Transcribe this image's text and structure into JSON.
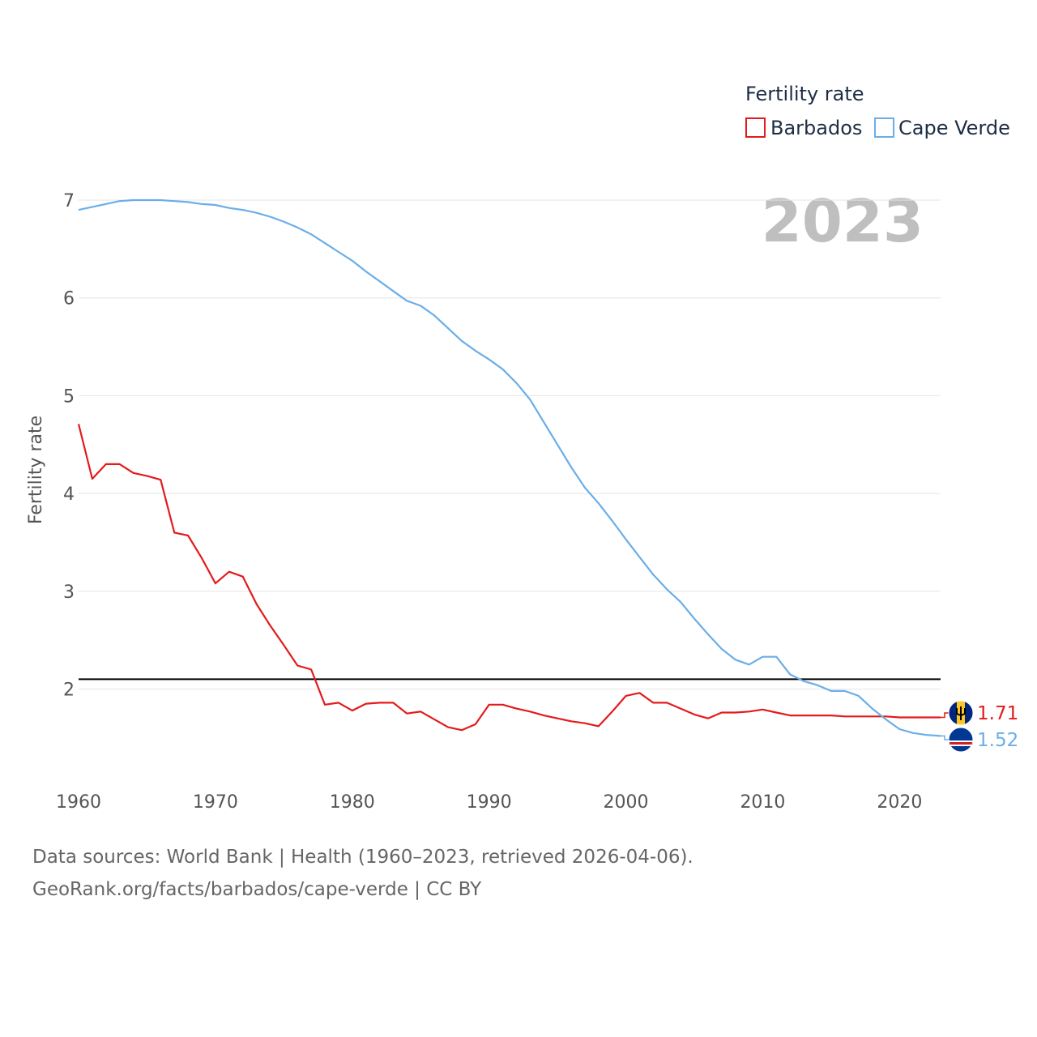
{
  "chart_data": {
    "type": "line",
    "legend_title": "Fertility rate",
    "ylabel": "Fertility rate",
    "xlabel": "",
    "year_label": "2023",
    "xlim": [
      1960,
      2023
    ],
    "ylim": [
      1.0,
      7.0
    ],
    "y_ticks": [
      2,
      3,
      4,
      5,
      6,
      7
    ],
    "x_ticks": [
      1960,
      1970,
      1980,
      1990,
      2000,
      2010,
      2020
    ],
    "reference_line": 2.1,
    "x": [
      1960,
      1961,
      1962,
      1963,
      1964,
      1965,
      1966,
      1967,
      1968,
      1969,
      1970,
      1971,
      1972,
      1973,
      1974,
      1975,
      1976,
      1977,
      1978,
      1979,
      1980,
      1981,
      1982,
      1983,
      1984,
      1985,
      1986,
      1987,
      1988,
      1989,
      1990,
      1991,
      1992,
      1993,
      1994,
      1995,
      1996,
      1997,
      1998,
      1999,
      2000,
      2001,
      2002,
      2003,
      2004,
      2005,
      2006,
      2007,
      2008,
      2009,
      2010,
      2011,
      2012,
      2013,
      2014,
      2015,
      2016,
      2017,
      2018,
      2019,
      2020,
      2021,
      2022,
      2023
    ],
    "series": [
      {
        "name": "Barbados",
        "color": "#e41a1c",
        "end_label": "1.71",
        "values": [
          4.71,
          4.15,
          4.3,
          4.3,
          4.21,
          4.18,
          4.14,
          3.6,
          3.57,
          3.34,
          3.08,
          3.2,
          3.15,
          2.87,
          2.65,
          2.45,
          2.24,
          2.2,
          1.84,
          1.86,
          1.78,
          1.85,
          1.86,
          1.86,
          1.75,
          1.77,
          1.69,
          1.61,
          1.58,
          1.64,
          1.84,
          1.84,
          1.8,
          1.77,
          1.73,
          1.7,
          1.67,
          1.65,
          1.62,
          1.77,
          1.93,
          1.96,
          1.86,
          1.86,
          1.8,
          1.74,
          1.7,
          1.76,
          1.76,
          1.77,
          1.79,
          1.76,
          1.73,
          1.73,
          1.73,
          1.73,
          1.72,
          1.72,
          1.72,
          1.72,
          1.71,
          1.71,
          1.71,
          1.71
        ]
      },
      {
        "name": "Cape Verde",
        "color": "#6aaee8",
        "end_label": "1.52",
        "values": [
          6.9,
          6.93,
          6.96,
          6.99,
          7.0,
          7.0,
          7.0,
          6.99,
          6.98,
          6.96,
          6.95,
          6.92,
          6.9,
          6.87,
          6.83,
          6.78,
          6.72,
          6.65,
          6.56,
          6.47,
          6.38,
          6.27,
          6.17,
          6.07,
          5.97,
          5.92,
          5.82,
          5.69,
          5.56,
          5.46,
          5.37,
          5.27,
          5.13,
          4.96,
          4.73,
          4.5,
          4.27,
          4.06,
          3.9,
          3.72,
          3.53,
          3.35,
          3.17,
          3.02,
          2.89,
          2.72,
          2.56,
          2.41,
          2.3,
          2.25,
          2.33,
          2.33,
          2.15,
          2.08,
          2.04,
          1.98,
          1.98,
          1.93,
          1.8,
          1.69,
          1.59,
          1.55,
          1.53,
          1.52
        ]
      }
    ]
  },
  "footer": {
    "line1": "Data sources: World Bank | Health (1960–2023, retrieved 2026-04-06).",
    "line2": "GeoRank.org/facts/barbados/cape-verde | CC BY"
  }
}
